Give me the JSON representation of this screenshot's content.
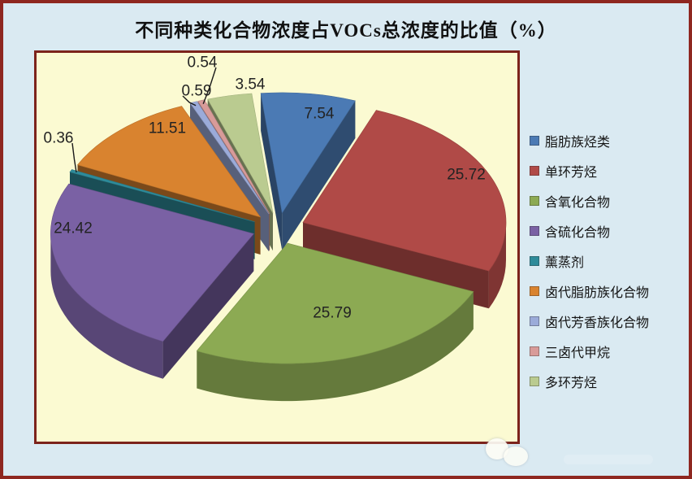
{
  "title": {
    "text": "不同种类化合物浓度占VOCs总浓度的比值（%）"
  },
  "plot": {
    "background": "#fbfad2",
    "border_color": "#7c231b"
  },
  "page": {
    "background": "#daeaf2",
    "border_color": "#8e2720"
  },
  "legend": {
    "position": "right"
  },
  "chart_data": {
    "type": "pie",
    "is_3d": true,
    "exploded": true,
    "title": "不同种类化合物浓度占VOCs总浓度的比值（%）",
    "unit": "%",
    "direction": "clockwise-from-top",
    "start_angle_deg": -6,
    "legend_position": "right",
    "grid": false,
    "slices": [
      {
        "label": "脂肪族烃类",
        "value": 7.54,
        "color": "#4B7AB4",
        "label_pos": [
          348,
          74
        ],
        "callout": false
      },
      {
        "label": "单环芳烃",
        "value": 25.72,
        "color": "#B04A47",
        "label_pos": [
          529,
          149
        ],
        "callout": false
      },
      {
        "label": "含氧化合物",
        "value": 25.79,
        "color": "#8CAA53",
        "label_pos": [
          364,
          319
        ],
        "callout": false
      },
      {
        "label": "含硫化合物",
        "value": 24.42,
        "color": "#7A61A4",
        "label_pos": [
          45,
          215
        ],
        "callout": false
      },
      {
        "label": "薰蒸剂",
        "value": 0.36,
        "color": "#2E8B9A",
        "label_pos": [
          27,
          104
        ],
        "callout": true
      },
      {
        "label": "卤代脂肪族化合物",
        "value": 11.51,
        "color": "#D9832F",
        "label_pos": [
          161,
          92
        ],
        "callout": false
      },
      {
        "label": "卤代芳香族化合物",
        "value": 0.59,
        "color": "#9BABD9",
        "label_pos": [
          197,
          46
        ],
        "callout": true
      },
      {
        "label": "三卤代甲烷",
        "value": 0.54,
        "color": "#D89B99",
        "label_pos": [
          204,
          11
        ],
        "callout": true
      },
      {
        "label": "多环芳烃",
        "value": 3.54,
        "color": "#BACB90",
        "label_pos": [
          263,
          38
        ],
        "callout": false
      }
    ]
  }
}
